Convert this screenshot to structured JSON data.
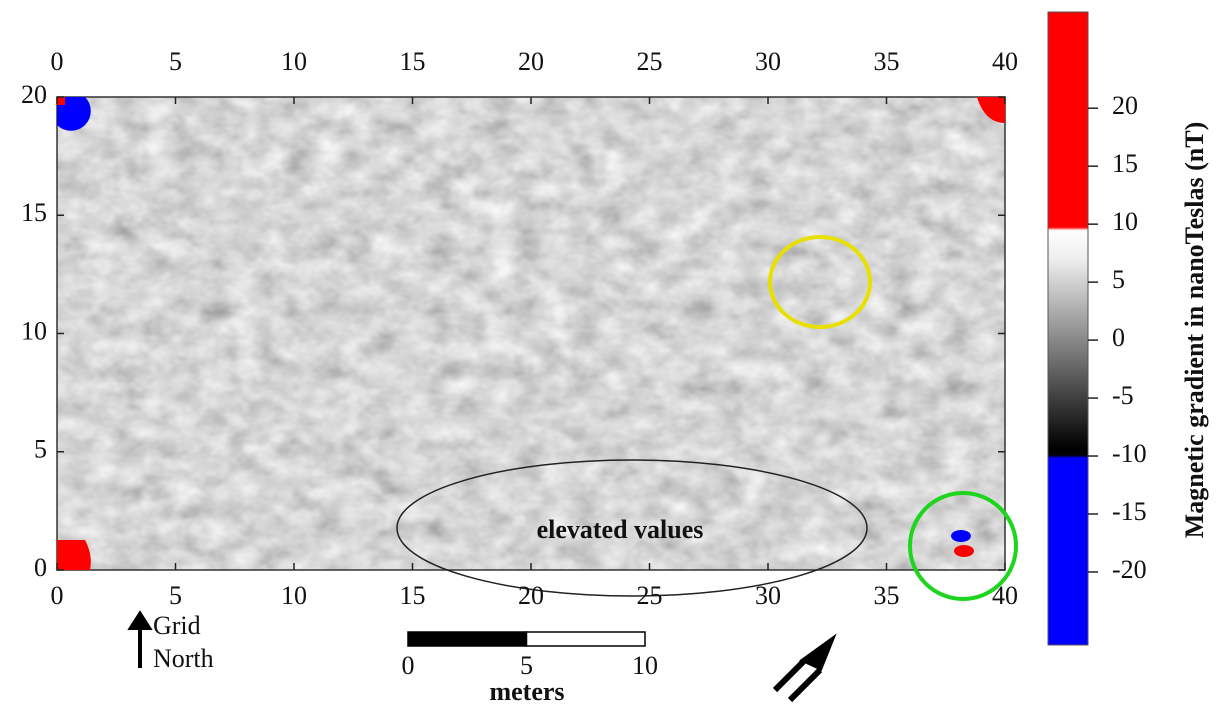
{
  "map": {
    "xlim": [
      0,
      40
    ],
    "ylim": [
      0,
      20
    ],
    "xticks": [
      0,
      5,
      10,
      15,
      20,
      25,
      30,
      35,
      40
    ],
    "yticks": [
      0,
      5,
      10,
      15,
      20
    ],
    "colorbar": {
      "title": "Magnetic gradient in nanoTeslas (nT)",
      "lim": [
        -26.3,
        28.3
      ],
      "ticks": [
        20,
        15,
        10,
        5,
        0,
        -5,
        -10,
        -15,
        -20
      ]
    },
    "annotation": "elevated values",
    "north": {
      "line1": "Grid",
      "line2": "North"
    },
    "scale": {
      "ticks": [
        0,
        5,
        10
      ],
      "unit": "meters"
    }
  }
}
